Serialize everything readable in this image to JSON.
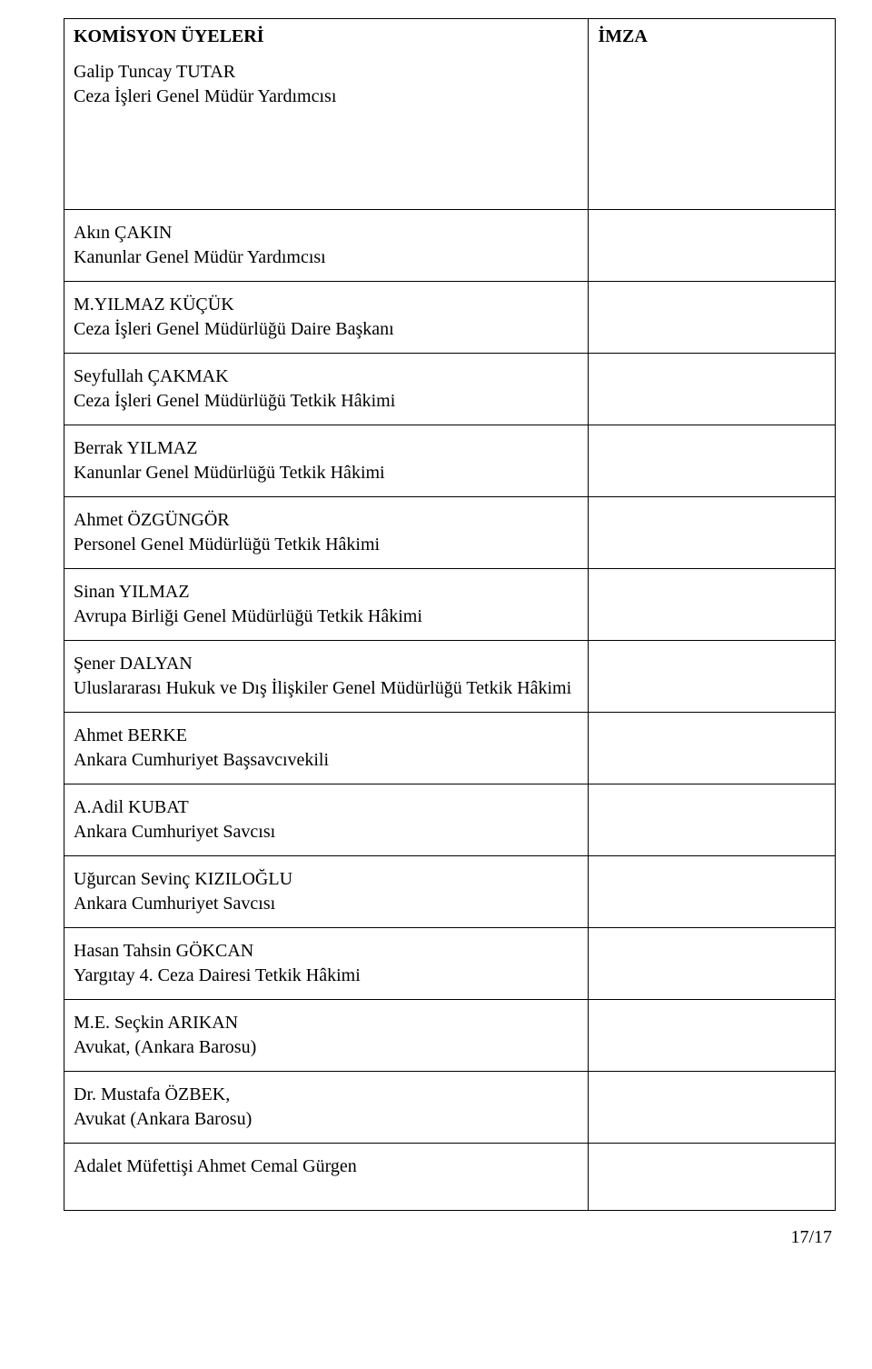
{
  "header": {
    "title": "KOMİSYON ÜYELERİ",
    "signature_col": "İMZA",
    "first_member_name": "Galip Tuncay TUTAR",
    "first_member_title": "Ceza İşleri Genel Müdür Yardımcısı"
  },
  "rows": [
    {
      "name": "Akın ÇAKIN",
      "title": "Kanunlar Genel Müdür Yardımcısı"
    },
    {
      "name": "M.YILMAZ KÜÇÜK",
      "title": "Ceza İşleri Genel Müdürlüğü Daire Başkanı"
    },
    {
      "name": "Seyfullah ÇAKMAK",
      "title": "Ceza İşleri Genel Müdürlüğü Tetkik Hâkimi"
    },
    {
      "name": "Berrak YILMAZ",
      "title": "Kanunlar Genel Müdürlüğü Tetkik Hâkimi"
    },
    {
      "name": "Ahmet ÖZGÜNGÖR",
      "title": "Personel Genel Müdürlüğü Tetkik Hâkimi"
    },
    {
      "name": "Sinan YILMAZ",
      "title": "Avrupa Birliği Genel Müdürlüğü Tetkik Hâkimi"
    },
    {
      "name": "Şener DALYAN",
      "title": "Uluslararası Hukuk ve Dış İlişkiler Genel Müdürlüğü Tetkik Hâkimi"
    },
    {
      "name": "Ahmet BERKE",
      "title": "Ankara Cumhuriyet Başsavcıvekili"
    },
    {
      "name": "A.Adil KUBAT",
      "title": "Ankara Cumhuriyet Savcısı"
    },
    {
      "name": "Uğurcan Sevinç KIZILOĞLU",
      "title": "Ankara Cumhuriyet Savcısı"
    },
    {
      "name": "Hasan Tahsin GÖKCAN",
      "title": "Yargıtay 4. Ceza Dairesi Tetkik Hâkimi"
    },
    {
      "name": "M.E. Seçkin ARIKAN",
      "title": "Avukat, (Ankara Barosu)"
    },
    {
      "name": "Dr. Mustafa ÖZBEK,",
      "title": "Avukat (Ankara Barosu)"
    },
    {
      "name": "Adalet Müfettişi Ahmet Cemal Gürgen",
      "title": ""
    }
  ],
  "page_number": "17/17"
}
